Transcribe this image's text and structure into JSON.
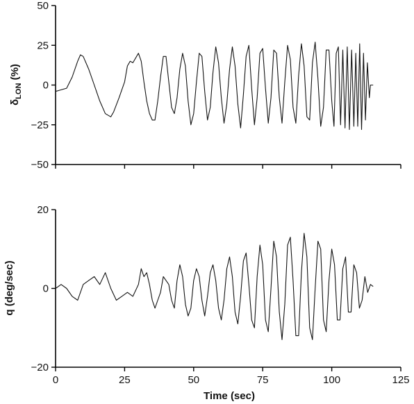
{
  "chart_data": [
    {
      "type": "line",
      "title": "",
      "ylabel_main": "δ",
      "ylabel_sub": "LON",
      "ylabel_unit": " (%)",
      "ylim": [
        -50,
        50
      ],
      "xlim": [
        0,
        125
      ],
      "yticks": [
        50,
        25,
        0,
        -25,
        -50
      ],
      "yticklabels": [
        "50",
        "25",
        "0",
        "−25",
        "−50"
      ],
      "grid": false,
      "series": [
        {
          "x": [
            0,
            2,
            4,
            6,
            8,
            9,
            10,
            12,
            14,
            16,
            18,
            20,
            21,
            23,
            25,
            26,
            27,
            28,
            30,
            31,
            32,
            33,
            34,
            35,
            36,
            37,
            38,
            39,
            40,
            41,
            42,
            43,
            44,
            45,
            46,
            47,
            48,
            49,
            50,
            51,
            52,
            53,
            54,
            55,
            56,
            57,
            58,
            59,
            60,
            61,
            62,
            63,
            64,
            65,
            66,
            67,
            68,
            69,
            70,
            71,
            72,
            73,
            74,
            75,
            76,
            77,
            78,
            79,
            80,
            81,
            82,
            83,
            84,
            85,
            86,
            87,
            88,
            89,
            90,
            91,
            92,
            93,
            94,
            95,
            96,
            97,
            98,
            99,
            100,
            100.8,
            101.6,
            102.4,
            103.2,
            104,
            104.8,
            105.6,
            106.4,
            107.2,
            108,
            108.7,
            109.4,
            110.1,
            110.8,
            111.5,
            112.2,
            112.9,
            113.6,
            114,
            115
          ],
          "y": [
            -4,
            -3,
            -2,
            5,
            15,
            19,
            18,
            10,
            0,
            -10,
            -18,
            -20,
            -17,
            -8,
            2,
            12,
            15,
            14,
            20,
            15,
            2,
            -10,
            -18,
            -22,
            -22,
            -10,
            5,
            18,
            18,
            2,
            -14,
            -18,
            -8,
            10,
            20,
            12,
            -10,
            -25,
            -18,
            2,
            20,
            18,
            -4,
            -22,
            -14,
            8,
            24,
            14,
            -8,
            -24,
            -12,
            10,
            24,
            12,
            -12,
            -27,
            -6,
            18,
            25,
            -2,
            -25,
            -8,
            20,
            23,
            -2,
            -24,
            -8,
            22,
            20,
            -8,
            -24,
            2,
            25,
            16,
            -14,
            -24,
            6,
            26,
            12,
            -20,
            -22,
            14,
            27,
            4,
            -26,
            -14,
            22,
            22,
            -10,
            -26,
            20,
            24,
            -25,
            22,
            -27,
            24,
            -28,
            22,
            -26,
            20,
            -26,
            26,
            -28,
            20,
            -22,
            14,
            -8,
            0,
            0
          ]
        }
      ]
    },
    {
      "type": "line",
      "title": "",
      "ylabel": "q (deg/sec)",
      "xlabel": "Time (sec)",
      "ylim": [
        -20,
        20
      ],
      "xlim": [
        0,
        125
      ],
      "yticks": [
        20,
        0,
        -20
      ],
      "yticklabels": [
        "20",
        "0",
        "−20"
      ],
      "xticks": [
        0,
        25,
        50,
        75,
        100,
        125
      ],
      "xticklabels": [
        "0",
        "25",
        "50",
        "75",
        "100",
        "125"
      ],
      "grid": false,
      "series": [
        {
          "x": [
            0,
            2,
            4,
            6,
            8,
            10,
            12,
            14,
            16,
            18,
            20,
            22,
            24,
            26,
            28,
            30,
            31,
            32,
            33,
            34,
            35,
            36,
            37,
            38,
            39,
            40,
            41,
            42,
            43,
            44,
            45,
            46,
            47,
            48,
            49,
            50,
            51,
            52,
            53,
            54,
            55,
            56,
            57,
            58,
            59,
            60,
            61,
            62,
            63,
            64,
            65,
            66,
            67,
            68,
            69,
            70,
            71,
            72,
            73,
            74,
            75,
            76,
            77,
            78,
            79,
            80,
            81,
            82,
            83,
            84,
            85,
            86,
            87,
            88,
            89,
            90,
            91,
            92,
            93,
            94,
            95,
            96,
            97,
            98,
            99,
            100,
            101,
            102,
            103,
            104,
            105,
            106,
            107,
            108,
            109,
            110,
            111,
            112,
            113,
            114,
            115
          ],
          "y": [
            0,
            1,
            0,
            -2,
            -3,
            1,
            2,
            3,
            1,
            4,
            0,
            -3,
            -2,
            -1,
            -2,
            1,
            5,
            3,
            4,
            1,
            -3,
            -5,
            -3,
            -1,
            3,
            2,
            1,
            -3,
            -5,
            2,
            6,
            3,
            -4,
            -7,
            -5,
            2,
            5,
            3,
            -3,
            -7,
            -2,
            4,
            6,
            2,
            -5,
            -8,
            -3,
            5,
            8,
            3,
            -6,
            -9,
            -2,
            7,
            9,
            1,
            -8,
            -10,
            3,
            11,
            6,
            -8,
            -11,
            0,
            12,
            8,
            -6,
            -13,
            -4,
            11,
            13,
            2,
            -12,
            -12,
            4,
            14,
            8,
            -10,
            -13,
            0,
            12,
            10,
            -8,
            -11,
            2,
            10,
            6,
            -8,
            -8,
            5,
            8,
            -6,
            -6,
            6,
            4,
            -5,
            -3,
            3,
            -1,
            1,
            0.5
          ]
        }
      ]
    }
  ]
}
